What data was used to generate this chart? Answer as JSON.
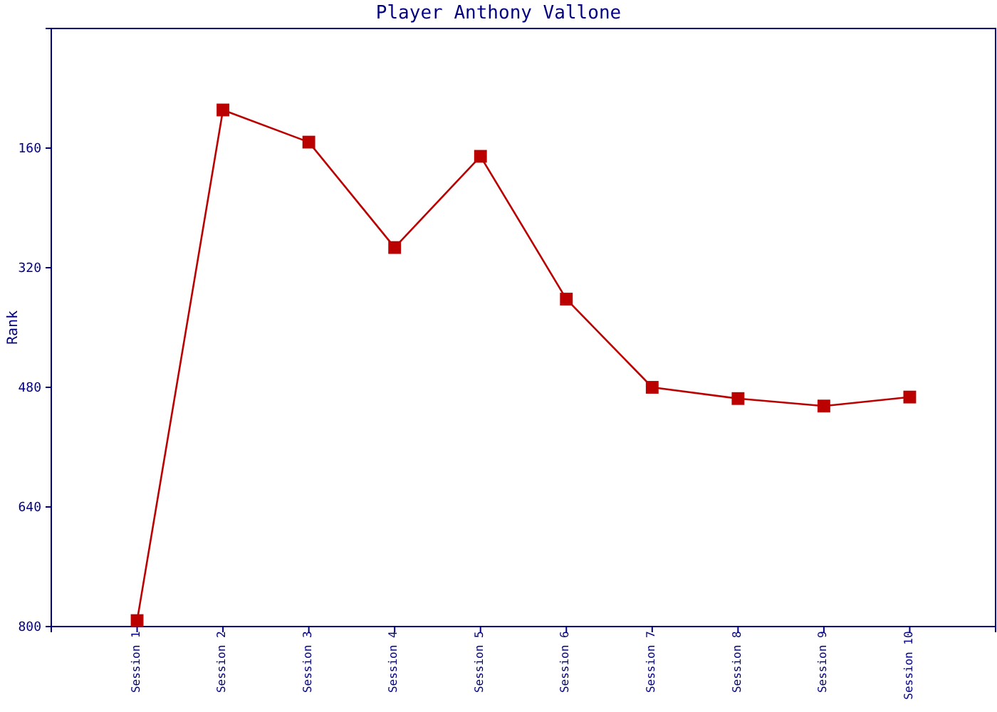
{
  "chart_data": {
    "type": "line",
    "title": "Player Anthony Vallone",
    "ylabel": "Rank",
    "categories": [
      "Session 1",
      "Session 2",
      "Session 3",
      "Session 4",
      "Session 5",
      "Session 6",
      "Session 7",
      "Session 8",
      "Session 9",
      "Session 10"
    ],
    "series": [
      {
        "color": "#bb0000",
        "values": [
          792,
          109,
          152,
          293,
          171,
          362,
          480,
          495,
          505,
          493
        ]
      }
    ],
    "ylim": [
      800,
      0
    ],
    "yticks": [
      160,
      320,
      480,
      640,
      800
    ],
    "marker": "square"
  }
}
